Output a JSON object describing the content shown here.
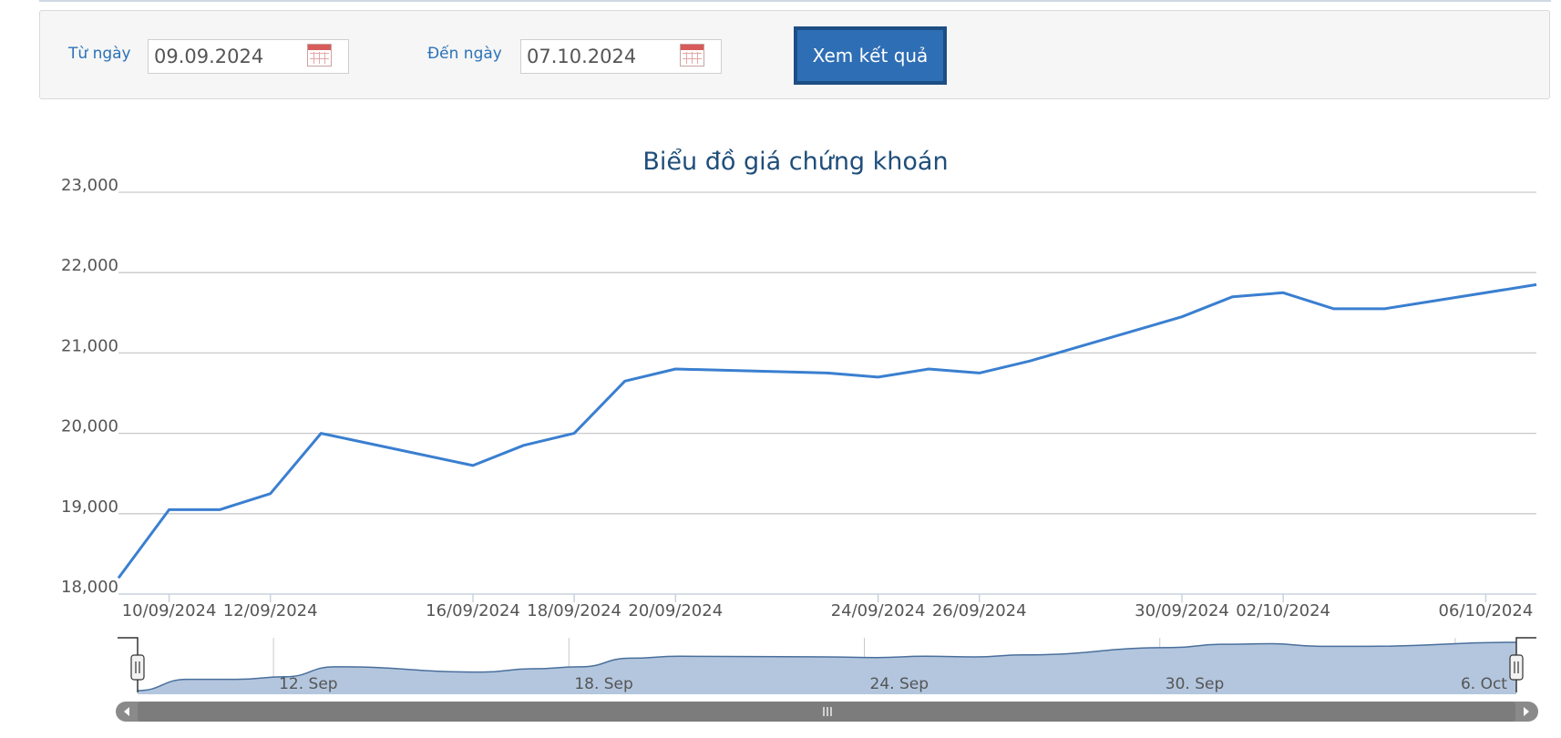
{
  "filter": {
    "from_label": "Từ ngày",
    "from_value": "09.09.2024",
    "to_label": "Đến ngày",
    "to_value": "07.10.2024",
    "submit_label": "Xem kết quả"
  },
  "navigator": {
    "labels": [
      "12. Sep",
      "18. Sep",
      "24. Sep",
      "30. Sep",
      "6. Oct"
    ]
  },
  "colors": {
    "accent": "#2b72b8",
    "line": "#3a7fd0",
    "navigator_fill": "#b3c6de",
    "navigator_line": "#4a6f9c",
    "scrollbar": "#808080"
  },
  "chart_data": {
    "type": "line",
    "title": "Biểu đồ giá chứng khoán",
    "xlabel": "",
    "ylabel": "",
    "ylim": [
      18000,
      23000
    ],
    "yticks": [
      18000,
      19000,
      20000,
      21000,
      22000,
      23000
    ],
    "ytick_labels": [
      "18,000",
      "19,000",
      "20,000",
      "21,000",
      "22,000",
      "23,000"
    ],
    "xticks": [
      "10/09/2024",
      "12/09/2024",
      "16/09/2024",
      "18/09/2024",
      "20/09/2024",
      "24/09/2024",
      "26/09/2024",
      "30/09/2024",
      "02/10/2024",
      "06/10/2024"
    ],
    "grid": true,
    "legend": false,
    "series": [
      {
        "x": [
          "09/09/2024",
          "10/09/2024",
          "11/09/2024",
          "12/09/2024",
          "13/09/2024",
          "16/09/2024",
          "17/09/2024",
          "18/09/2024",
          "19/09/2024",
          "20/09/2024",
          "23/09/2024",
          "24/09/2024",
          "25/09/2024",
          "26/09/2024",
          "27/09/2024",
          "30/09/2024",
          "01/10/2024",
          "02/10/2024",
          "03/10/2024",
          "04/10/2024",
          "07/10/2024"
        ],
        "values": [
          18200,
          19050,
          19050,
          19250,
          20000,
          19600,
          19850,
          20000,
          20650,
          20800,
          20750,
          20700,
          20800,
          20750,
          20900,
          21450,
          21700,
          21750,
          21550,
          21550,
          21850
        ]
      }
    ]
  }
}
